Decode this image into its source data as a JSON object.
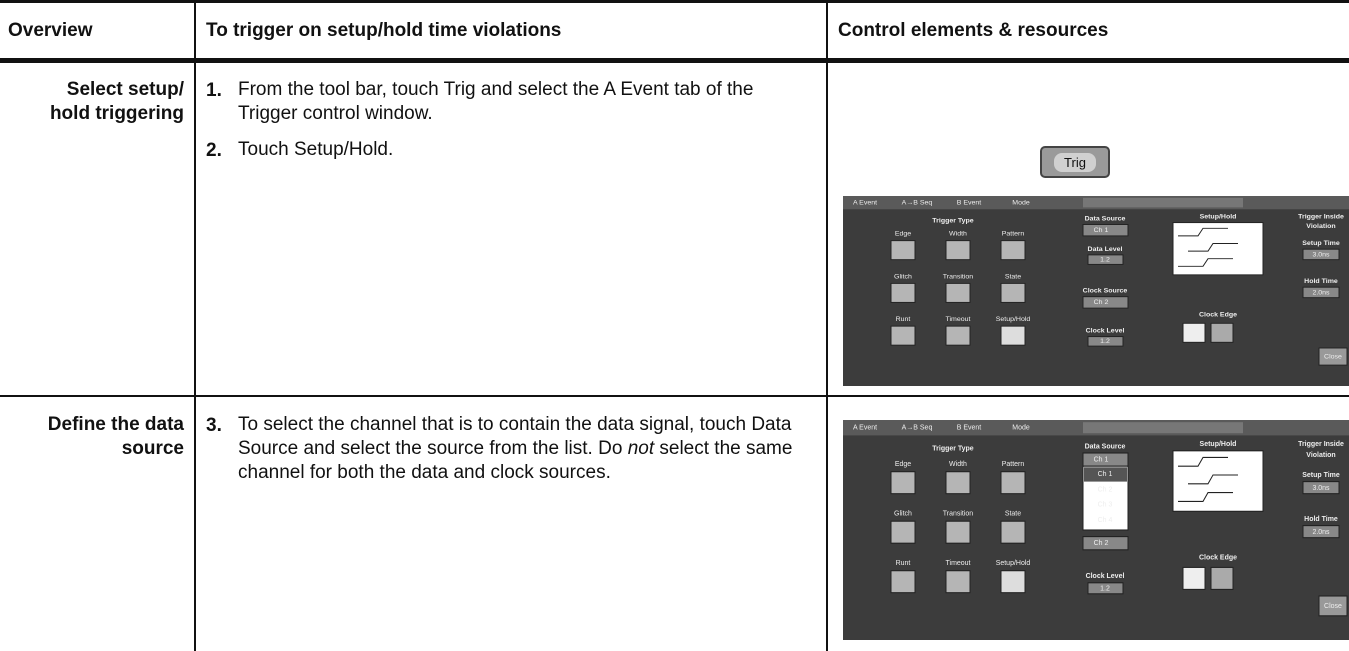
{
  "header": {
    "overview": "Overview",
    "procedure": "To trigger on setup/hold time violations",
    "resources": "Control elements & resources"
  },
  "rows": [
    {
      "overview": [
        "Select setup/",
        "hold triggering"
      ],
      "steps": [
        {
          "number": "1.",
          "text": "From the tool bar, touch Trig and select the A Event tab of the Trigger control window."
        },
        {
          "number": "2.",
          "text": "Touch Setup/Hold."
        }
      ],
      "resources": {
        "button": "Trig",
        "panel": {
          "tabs": [
            "A Event",
            "A→B Seq",
            "B Event",
            "Mode"
          ],
          "trigger_type": "Trigger Type",
          "types": [
            "Edge",
            "Width",
            "Pattern",
            "Glitch",
            "Transition",
            "State",
            "Runt",
            "Timeout",
            "Setup/Hold"
          ],
          "data_source": "Data Source",
          "data_source_value": "Ch 1",
          "data_level": "Data Level",
          "data_level_value": "1.2",
          "clock_source": "Clock Source",
          "clock_source_value": "Ch 2",
          "clock_level": "Clock Level",
          "clock_level_value": "1.2",
          "setup_hold": "Setup/Hold",
          "clock_edge": "Clock Edge",
          "violation": [
            "Trigger Inside",
            "Violation"
          ],
          "setup_time": "Setup Time",
          "setup_time_value": "3.0ns",
          "hold_time": "Hold Time",
          "hold_time_value": "2.0ns",
          "close": "Close"
        }
      }
    },
    {
      "overview": [
        "Define the data",
        "source"
      ],
      "steps": [
        {
          "number": "3.",
          "text": "To select the channel that is to contain the data signal, touch Data Source and select the source from the list. Do ",
          "emphasis": "not",
          "text_after": " select the same channel for both the data and clock sources."
        }
      ],
      "resources": {
        "panel": {
          "tabs": [
            "A Event",
            "A→B Seq",
            "B Event",
            "Mode"
          ],
          "trigger_type": "Trigger Type",
          "types": [
            "Edge",
            "Width",
            "Pattern",
            "Glitch",
            "Transition",
            "State",
            "Runt",
            "Timeout",
            "Setup/Hold"
          ],
          "data_source": "Data Source",
          "data_source_value": "Ch 1",
          "data_source_list": [
            "Ch 1",
            "Ch 2",
            "Ch 3",
            "Ch 4"
          ],
          "clock_source_value": "Ch 2",
          "clock_level": "Clock Level",
          "clock_level_value": "1.2",
          "setup_hold": "Setup/Hold",
          "clock_edge": "Clock Edge",
          "violation": [
            "Trigger Inside",
            "Violation"
          ],
          "setup_time": "Setup Time",
          "setup_time_value": "3.0ns",
          "hold_time": "Hold Time",
          "hold_time_value": "2.0ns",
          "close": "Close"
        }
      }
    }
  ]
}
